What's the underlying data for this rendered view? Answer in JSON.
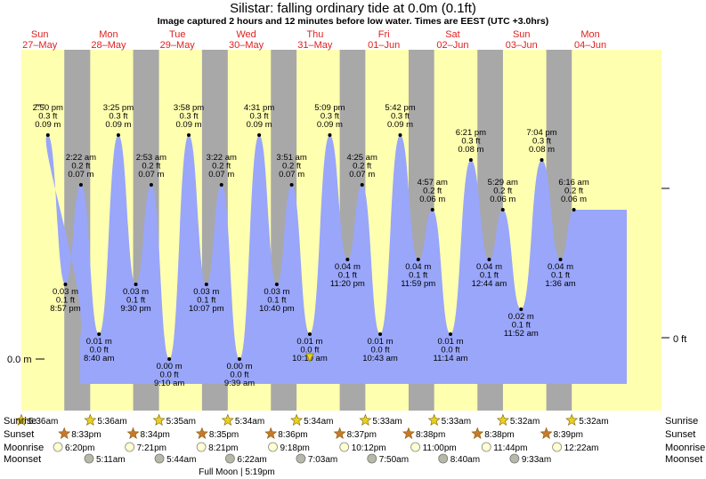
{
  "title": "Silistar: falling  ordinary tide at 0.0m (0.1ft)",
  "subtitle": "Image captured 2 hours and 12 minutes before low water. Times are EEST (UTC +3.0hrs)",
  "left_axis_label": "0.0 m",
  "right_axis_label": "0 ft",
  "row_labels": [
    "Sunrise",
    "Sunset",
    "Moonrise",
    "Moonset"
  ],
  "moon_phase": "Full Moon | 5:19pm",
  "colors": {
    "night": "#a8a8a8",
    "day": "#ffffb0",
    "water": "#99a6fa",
    "star": "#e8d020",
    "sunset_star": "#c87830",
    "moonrise": "#ffffd0",
    "moonset": "#b8b8a8",
    "day_text": "#e02020"
  },
  "chart_data": {
    "type": "area",
    "days": [
      {
        "name": "Sun",
        "date": "27–May"
      },
      {
        "name": "Mon",
        "date": "28–May"
      },
      {
        "name": "Tue",
        "date": "29–May"
      },
      {
        "name": "Wed",
        "date": "30–May"
      },
      {
        "name": "Thu",
        "date": "31–May"
      },
      {
        "name": "Fri",
        "date": "01–Jun"
      },
      {
        "name": "Sat",
        "date": "02–Jun"
      },
      {
        "name": "Sun",
        "date": "03–Jun"
      },
      {
        "name": "Mon",
        "date": "04–Jun"
      }
    ],
    "tides": [
      {
        "day": 0,
        "time": "2:50 pm",
        "ft": "0.3 ft",
        "m": "0.09 m",
        "height": 0.09,
        "type": "high"
      },
      {
        "day": 0,
        "time": "8:57 pm",
        "ft": "0.1 ft",
        "m": "0.03 m",
        "height": 0.03,
        "type": "low"
      },
      {
        "day": 1,
        "time": "2:22 am",
        "ft": "0.2 ft",
        "m": "0.07 m",
        "height": 0.07,
        "type": "high"
      },
      {
        "day": 1,
        "time": "8:40 am",
        "ft": "0.0 ft",
        "m": "0.01 m",
        "height": 0.01,
        "type": "low"
      },
      {
        "day": 1,
        "time": "3:25 pm",
        "ft": "0.3 ft",
        "m": "0.09 m",
        "height": 0.09,
        "type": "high"
      },
      {
        "day": 1,
        "time": "9:30 pm",
        "ft": "0.1 ft",
        "m": "0.03 m",
        "height": 0.03,
        "type": "low"
      },
      {
        "day": 2,
        "time": "2:53 am",
        "ft": "0.2 ft",
        "m": "0.07 m",
        "height": 0.07,
        "type": "high"
      },
      {
        "day": 2,
        "time": "9:10 am",
        "ft": "0.0 ft",
        "m": "0.00 m",
        "height": 0.0,
        "type": "low"
      },
      {
        "day": 2,
        "time": "3:58 pm",
        "ft": "0.3 ft",
        "m": "0.09 m",
        "height": 0.09,
        "type": "high"
      },
      {
        "day": 2,
        "time": "10:07 pm",
        "ft": "0.1 ft",
        "m": "0.03 m",
        "height": 0.03,
        "type": "low"
      },
      {
        "day": 3,
        "time": "3:22 am",
        "ft": "0.2 ft",
        "m": "0.07 m",
        "height": 0.07,
        "type": "high"
      },
      {
        "day": 3,
        "time": "9:39 am",
        "ft": "0.0 ft",
        "m": "0.00 m",
        "height": 0.0,
        "type": "low"
      },
      {
        "day": 3,
        "time": "4:31 pm",
        "ft": "0.3 ft",
        "m": "0.09 m",
        "height": 0.09,
        "type": "high"
      },
      {
        "day": 3,
        "time": "10:40 pm",
        "ft": "0.1 ft",
        "m": "0.03 m",
        "height": 0.03,
        "type": "low"
      },
      {
        "day": 4,
        "time": "3:51 am",
        "ft": "0.2 ft",
        "m": "0.07 m",
        "height": 0.07,
        "type": "high"
      },
      {
        "day": 4,
        "time": "10:10 am",
        "ft": "0.0 ft",
        "m": "0.01 m",
        "height": 0.01,
        "type": "low"
      },
      {
        "day": 4,
        "time": "5:09 pm",
        "ft": "0.3 ft",
        "m": "0.09 m",
        "height": 0.09,
        "type": "high"
      },
      {
        "day": 4,
        "time": "11:20 pm",
        "ft": "0.1 ft",
        "m": "0.04 m",
        "height": 0.04,
        "type": "low"
      },
      {
        "day": 5,
        "time": "4:25 am",
        "ft": "0.2 ft",
        "m": "0.07 m",
        "height": 0.07,
        "type": "high"
      },
      {
        "day": 5,
        "time": "10:43 am",
        "ft": "0.0 ft",
        "m": "0.01 m",
        "height": 0.01,
        "type": "low"
      },
      {
        "day": 5,
        "time": "5:42 pm",
        "ft": "0.3 ft",
        "m": "0.09 m",
        "height": 0.09,
        "type": "high"
      },
      {
        "day": 5,
        "time": "11:59 pm",
        "ft": "0.1 ft",
        "m": "0.04 m",
        "height": 0.04,
        "type": "low"
      },
      {
        "day": 6,
        "time": "4:57 am",
        "ft": "0.2 ft",
        "m": "0.06 m",
        "height": 0.06,
        "type": "high"
      },
      {
        "day": 6,
        "time": "11:14 am",
        "ft": "0.0 ft",
        "m": "0.01 m",
        "height": 0.01,
        "type": "low"
      },
      {
        "day": 6,
        "time": "6:21 pm",
        "ft": "0.3 ft",
        "m": "0.08 m",
        "height": 0.08,
        "type": "high"
      },
      {
        "day": 7,
        "time": "12:44 am",
        "ft": "0.1 ft",
        "m": "0.04 m",
        "height": 0.04,
        "type": "low"
      },
      {
        "day": 7,
        "time": "5:29 am",
        "ft": "0.2 ft",
        "m": "0.06 m",
        "height": 0.06,
        "type": "high"
      },
      {
        "day": 7,
        "time": "11:52 am",
        "ft": "0.1 ft",
        "m": "0.02 m",
        "height": 0.02,
        "type": "low"
      },
      {
        "day": 7,
        "time": "7:04 pm",
        "ft": "0.3 ft",
        "m": "0.08 m",
        "height": 0.08,
        "type": "high"
      },
      {
        "day": 8,
        "time": "1:36 am",
        "ft": "0.1 ft",
        "m": "0.04 m",
        "height": 0.04,
        "type": "low"
      },
      {
        "day": 8,
        "time": "6:16 am",
        "ft": "0.2 ft",
        "m": "0.06 m",
        "height": 0.06,
        "type": "high"
      }
    ],
    "sunrise": [
      "5:36am",
      "5:36am",
      "5:35am",
      "5:34am",
      "5:34am",
      "5:33am",
      "5:33am",
      "5:32am",
      "5:32am"
    ],
    "sunset": [
      "8:33pm",
      "8:34pm",
      "8:35pm",
      "8:36pm",
      "8:37pm",
      "8:38pm",
      "8:38pm",
      "8:39pm"
    ],
    "moonrise": [
      "6:20pm",
      "7:21pm",
      "8:21pm",
      "9:18pm",
      "10:12pm",
      "11:00pm",
      "11:44pm",
      "12:22am"
    ],
    "moonset": [
      "5:11am",
      "5:44am",
      "6:22am",
      "7:03am",
      "7:50am",
      "8:40am",
      "9:33am"
    ],
    "current_time": "10:10 am",
    "current_day": 4
  }
}
